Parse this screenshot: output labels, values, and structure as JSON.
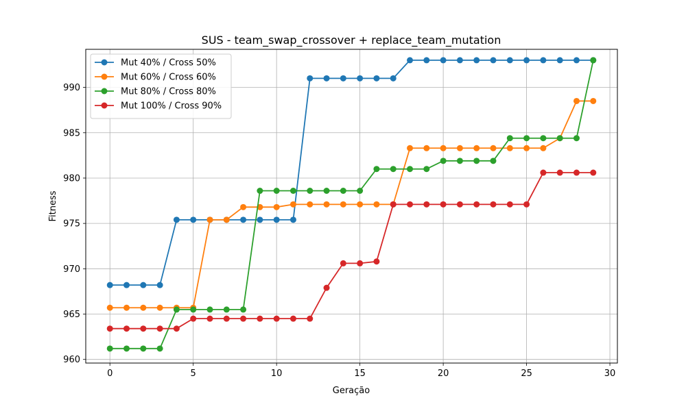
{
  "chart_data": {
    "type": "line",
    "title": "SUS - team_swap_crossover + replace_team_mutation",
    "xlabel": "Geração",
    "ylabel": "Fitness",
    "xlim": [
      -1.45,
      30.45
    ],
    "ylim": [
      959.6,
      994.2
    ],
    "xticks": [
      0,
      5,
      10,
      15,
      20,
      25,
      30
    ],
    "yticks": [
      960,
      965,
      970,
      975,
      980,
      985,
      990
    ],
    "grid": true,
    "legend_position": "top-left",
    "x": [
      0,
      1,
      2,
      3,
      4,
      5,
      6,
      7,
      8,
      9,
      10,
      11,
      12,
      13,
      14,
      15,
      16,
      17,
      18,
      19,
      20,
      21,
      22,
      23,
      24,
      25,
      26,
      27,
      28,
      29
    ],
    "series": [
      {
        "name": "Mut 40% / Cross 50%",
        "color": "#1f77b4",
        "values": [
          968.2,
          968.2,
          968.2,
          968.2,
          975.4,
          975.4,
          975.4,
          975.4,
          975.4,
          975.4,
          975.4,
          975.4,
          991.0,
          991.0,
          991.0,
          991.0,
          991.0,
          991.0,
          993.0,
          993.0,
          993.0,
          993.0,
          993.0,
          993.0,
          993.0,
          993.0,
          993.0,
          993.0,
          993.0,
          993.0
        ]
      },
      {
        "name": "Mut 60% / Cross 60%",
        "color": "#ff7f0e",
        "values": [
          965.7,
          965.7,
          965.7,
          965.7,
          965.7,
          965.7,
          975.4,
          975.4,
          976.8,
          976.8,
          976.8,
          977.1,
          977.1,
          977.1,
          977.1,
          977.1,
          977.1,
          977.1,
          983.3,
          983.3,
          983.3,
          983.3,
          983.3,
          983.3,
          983.3,
          983.3,
          983.3,
          984.4,
          988.5,
          988.5
        ]
      },
      {
        "name": "Mut 80% / Cross 80%",
        "color": "#2ca02c",
        "values": [
          961.2,
          961.2,
          961.2,
          961.2,
          965.5,
          965.5,
          965.5,
          965.5,
          965.5,
          978.6,
          978.6,
          978.6,
          978.6,
          978.6,
          978.6,
          978.6,
          981.0,
          981.0,
          981.0,
          981.0,
          981.9,
          981.9,
          981.9,
          981.9,
          984.4,
          984.4,
          984.4,
          984.4,
          984.4,
          993.0
        ]
      },
      {
        "name": "Mut 100% / Cross 90%",
        "color": "#d62728",
        "values": [
          963.4,
          963.4,
          963.4,
          963.4,
          963.4,
          964.5,
          964.5,
          964.5,
          964.5,
          964.5,
          964.5,
          964.5,
          964.5,
          967.9,
          970.6,
          970.6,
          970.8,
          977.1,
          977.1,
          977.1,
          977.1,
          977.1,
          977.1,
          977.1,
          977.1,
          977.1,
          980.6,
          980.6,
          980.6,
          980.6
        ]
      }
    ]
  }
}
